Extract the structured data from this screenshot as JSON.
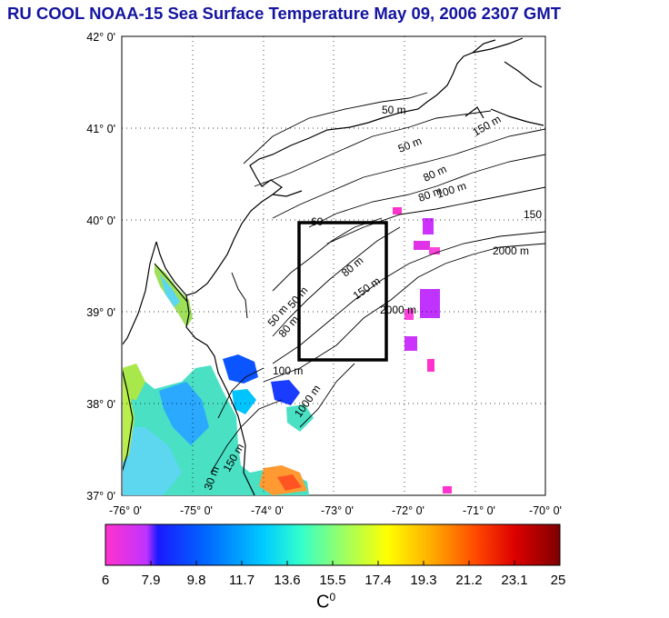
{
  "title": "RU COOL  NOAA-15 Sea Surface Temperature May 09, 2006 2307 GMT",
  "map": {
    "lon_ticks": [
      "-76° 0'",
      "-75° 0'",
      "-74° 0'",
      "-73° 0'",
      "-72° 0'",
      "-71° 0'",
      "-70° 0'"
    ],
    "lat_ticks": [
      "42° 0'",
      "41° 0'",
      "40° 0'",
      "39° 0'",
      "38° 0'",
      "37° 0'"
    ],
    "lon_range": [
      -76,
      -70
    ],
    "lat_range": [
      37,
      42
    ],
    "study_box": {
      "lon": [
        -73.5,
        -72.3
      ],
      "lat": [
        38.5,
        40.0
      ]
    },
    "contour_labels": [
      "50 m",
      "50 m",
      "80 m",
      "80 m",
      "100 m",
      "150 m",
      "150",
      "2000 m",
      "60",
      "50 m",
      "80 m",
      "150 m",
      "2000 m",
      "50 m",
      "80 m",
      "100 m",
      "1000 m",
      "30 m",
      "150 m"
    ]
  },
  "colorbar": {
    "ticks": [
      "6",
      "7.9",
      "9.8",
      "11.7",
      "13.6",
      "15.5",
      "17.4",
      "19.3",
      "21.2",
      "23.1",
      "25"
    ],
    "unit_base": "C",
    "unit_sup": "0",
    "colors": [
      "#ff33cc",
      "#cc33ff",
      "#1a1aff",
      "#0066ff",
      "#00ccff",
      "#33ffcc",
      "#99ff66",
      "#ffff00",
      "#ffaa00",
      "#ff4400",
      "#cc0000",
      "#800000"
    ]
  }
}
